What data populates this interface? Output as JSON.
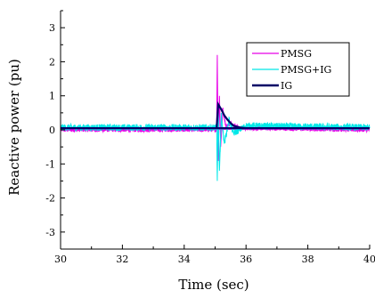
{
  "chart_data": {
    "type": "line",
    "title": "",
    "xlabel": "Time (sec)",
    "ylabel": "Reactive power (pu)",
    "xlim": [
      30,
      40
    ],
    "ylim": [
      -3.5,
      3.5
    ],
    "x_ticks": [
      30,
      32,
      34,
      36,
      38,
      40
    ],
    "y_ticks": [
      3,
      2,
      1,
      0,
      -1,
      -2,
      -3
    ],
    "grid": false,
    "legend_position": "top-right",
    "series": [
      {
        "name": "PMSG",
        "color": "#e800e8",
        "baseline": 0.0,
        "noise": 0.06,
        "points": [
          [
            30,
            0.0
          ],
          [
            35.05,
            0.0
          ],
          [
            35.07,
            2.2
          ],
          [
            35.1,
            -0.9
          ],
          [
            35.14,
            1.0
          ],
          [
            35.18,
            -0.5
          ],
          [
            35.25,
            0.6
          ],
          [
            35.35,
            0.1
          ],
          [
            35.5,
            0.2
          ],
          [
            35.8,
            0.05
          ],
          [
            40,
            0.0
          ]
        ]
      },
      {
        "name": "PMSG+IG",
        "color": "#00e8e8",
        "baseline": 0.07,
        "noise": 0.1,
        "points": [
          [
            30,
            0.07
          ],
          [
            35.05,
            0.07
          ],
          [
            35.07,
            -1.5
          ],
          [
            35.1,
            0.6
          ],
          [
            35.14,
            -1.2
          ],
          [
            35.2,
            0.4
          ],
          [
            35.3,
            -0.4
          ],
          [
            35.45,
            0.3
          ],
          [
            35.6,
            -0.1
          ],
          [
            36.0,
            0.12
          ],
          [
            40,
            0.07
          ]
        ]
      },
      {
        "name": "IG",
        "color": "#000066",
        "baseline": 0.05,
        "noise": 0.0,
        "points": [
          [
            30,
            0.05
          ],
          [
            35.0,
            0.05
          ],
          [
            35.05,
            0.05
          ],
          [
            35.1,
            0.75
          ],
          [
            35.2,
            0.6
          ],
          [
            35.3,
            0.42
          ],
          [
            35.4,
            0.3
          ],
          [
            35.5,
            0.2
          ],
          [
            35.6,
            0.12
          ],
          [
            35.8,
            0.07
          ],
          [
            36.0,
            0.05
          ],
          [
            40,
            0.05
          ]
        ]
      }
    ]
  }
}
